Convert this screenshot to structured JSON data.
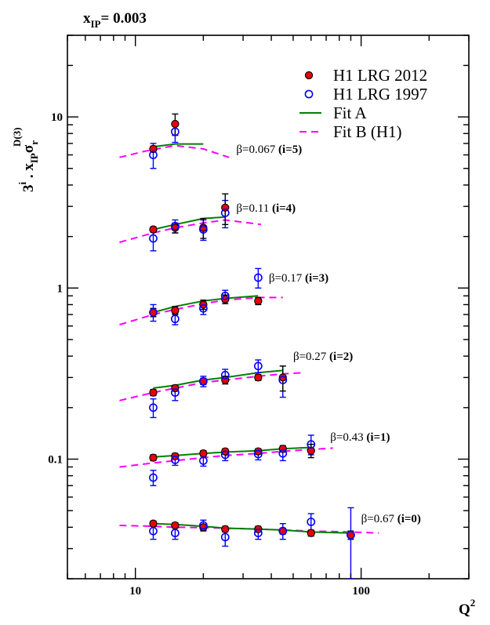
{
  "chart_data": {
    "type": "scatter",
    "title": "x",
    "title_sub": "IP",
    "title_suffix": "= 0.003",
    "xlabel": "Q",
    "xlabel_sup": "2",
    "ylabel": {
      "prefix": "3",
      "prefix_sup": "i",
      "mid": " . x",
      "mid_sub": "IP",
      "sigma": "σ",
      "sigma_sub": "r",
      "sigma_sup": "D(3)"
    },
    "x_scale": "log",
    "y_scale": "log",
    "xlim": [
      5,
      300
    ],
    "ylim": [
      0.02,
      30
    ],
    "x_ticks": [
      {
        "v": 10,
        "label": "10"
      },
      {
        "v": 100,
        "label": "100"
      }
    ],
    "y_ticks": [
      {
        "v": 0.1,
        "label": "0.1"
      },
      {
        "v": 1,
        "label": "1"
      },
      {
        "v": 10,
        "label": "10"
      }
    ],
    "grid": false,
    "legend_position": "top-right",
    "legend": [
      {
        "label": "H1 LRG 2012",
        "kind": "filled-circle"
      },
      {
        "label": "H1 LRG 1997",
        "kind": "open-circle"
      },
      {
        "label": "Fit A",
        "kind": "solid-line"
      },
      {
        "label": "Fit B (H1)",
        "kind": "dashed-line"
      }
    ],
    "colors": {
      "h1_2012_fill": "#e8000b",
      "h1_1997": "#0000ff",
      "fit_a": "#008000",
      "fit_b": "#ff00ff",
      "axis": "#000000"
    },
    "bins": [
      {
        "beta": "β=0.067",
        "idx": "(i=5)",
        "label_x": 28,
        "label_y": 6.5,
        "lrg2012": [
          [
            12,
            6.5,
            0.25
          ],
          [
            15,
            9.1,
            1.3
          ]
        ],
        "lrg1997": [
          [
            12,
            6.0,
            1.0
          ],
          [
            15,
            8.2,
            1.1
          ]
        ],
        "fitA": [
          [
            12,
            6.7
          ],
          [
            15,
            6.95
          ],
          [
            20,
            6.95
          ]
        ],
        "fitB": [
          [
            8.5,
            5.8
          ],
          [
            11,
            6.3
          ],
          [
            15,
            6.8
          ],
          [
            20,
            6.5
          ],
          [
            26,
            5.8
          ]
        ]
      },
      {
        "beta": "β=0.11",
        "idx": "(i=4)",
        "label_x": 28,
        "label_y": 2.95,
        "lrg2012": [
          [
            12,
            2.2,
            0.08
          ],
          [
            15,
            2.25,
            0.15
          ],
          [
            20,
            2.25,
            0.3
          ],
          [
            25,
            2.95,
            0.6
          ]
        ],
        "lrg1997": [
          [
            12,
            1.95,
            0.3
          ],
          [
            15,
            2.3,
            0.2
          ],
          [
            20,
            2.2,
            0.3
          ],
          [
            25,
            2.75,
            0.5
          ]
        ],
        "fitA": [
          [
            12,
            2.2
          ],
          [
            15,
            2.35
          ],
          [
            20,
            2.55
          ],
          [
            25,
            2.6
          ]
        ],
        "fitB": [
          [
            8.5,
            1.85
          ],
          [
            12,
            2.1
          ],
          [
            15,
            2.25
          ],
          [
            20,
            2.4
          ],
          [
            25,
            2.5
          ],
          [
            36,
            2.35
          ]
        ]
      },
      {
        "beta": "β=0.17",
        "idx": "(i=3)",
        "label_x": 39,
        "label_y": 1.15,
        "lrg2012": [
          [
            12,
            0.72,
            0.04
          ],
          [
            15,
            0.74,
            0.04
          ],
          [
            20,
            0.8,
            0.05
          ],
          [
            25,
            0.86,
            0.05
          ],
          [
            35,
            0.84,
            0.04
          ]
        ],
        "lrg1997": [
          [
            12,
            0.72,
            0.08
          ],
          [
            15,
            0.66,
            0.05
          ],
          [
            20,
            0.76,
            0.06
          ],
          [
            25,
            0.9,
            0.07
          ],
          [
            35,
            1.15,
            0.15
          ]
        ],
        "fitA": [
          [
            12,
            0.72
          ],
          [
            15,
            0.78
          ],
          [
            20,
            0.84
          ],
          [
            25,
            0.87
          ],
          [
            35,
            0.9
          ]
        ],
        "fitB": [
          [
            8.5,
            0.61
          ],
          [
            12,
            0.7
          ],
          [
            15,
            0.75
          ],
          [
            20,
            0.81
          ],
          [
            25,
            0.85
          ],
          [
            35,
            0.88
          ],
          [
            45,
            0.88
          ]
        ]
      },
      {
        "beta": "β=0.27",
        "idx": "(i=2)",
        "label_x": 50,
        "label_y": 0.4,
        "lrg2012": [
          [
            12,
            0.245,
            0.01
          ],
          [
            15,
            0.26,
            0.01
          ],
          [
            20,
            0.285,
            0.012
          ],
          [
            25,
            0.29,
            0.015
          ],
          [
            35,
            0.3,
            0.012
          ],
          [
            45,
            0.3,
            0.05
          ]
        ],
        "lrg1997": [
          [
            12,
            0.2,
            0.025
          ],
          [
            15,
            0.245,
            0.025
          ],
          [
            20,
            0.285,
            0.02
          ],
          [
            25,
            0.31,
            0.025
          ],
          [
            35,
            0.35,
            0.03
          ],
          [
            45,
            0.29,
            0.06
          ]
        ],
        "fitA": [
          [
            12,
            0.26
          ],
          [
            15,
            0.27
          ],
          [
            20,
            0.29
          ],
          [
            25,
            0.3
          ],
          [
            35,
            0.32
          ],
          [
            45,
            0.33
          ]
        ],
        "fitB": [
          [
            8.5,
            0.22
          ],
          [
            12,
            0.245
          ],
          [
            15,
            0.26
          ],
          [
            20,
            0.28
          ],
          [
            25,
            0.29
          ],
          [
            35,
            0.305
          ],
          [
            45,
            0.315
          ],
          [
            55,
            0.32
          ]
        ]
      },
      {
        "beta": "β=0.43",
        "idx": "(i=1)",
        "label_x": 73,
        "label_y": 0.135,
        "lrg2012": [
          [
            12,
            0.102,
            0.004
          ],
          [
            15,
            0.104,
            0.004
          ],
          [
            20,
            0.108,
            0.004
          ],
          [
            25,
            0.111,
            0.004
          ],
          [
            35,
            0.111,
            0.004
          ],
          [
            45,
            0.115,
            0.005
          ],
          [
            60,
            0.112,
            0.01
          ]
        ],
        "lrg1997": [
          [
            12,
            0.078,
            0.008
          ],
          [
            15,
            0.099,
            0.007
          ],
          [
            20,
            0.098,
            0.007
          ],
          [
            25,
            0.106,
            0.008
          ],
          [
            35,
            0.107,
            0.008
          ],
          [
            45,
            0.108,
            0.01
          ],
          [
            60,
            0.122,
            0.016
          ]
        ],
        "fitA": [
          [
            12,
            0.103
          ],
          [
            15,
            0.105
          ],
          [
            20,
            0.108
          ],
          [
            25,
            0.11
          ],
          [
            35,
            0.112
          ],
          [
            45,
            0.115
          ],
          [
            60,
            0.117
          ]
        ],
        "fitB": [
          [
            8.5,
            0.09
          ],
          [
            12,
            0.095
          ],
          [
            15,
            0.098
          ],
          [
            20,
            0.102
          ],
          [
            25,
            0.105
          ],
          [
            35,
            0.108
          ],
          [
            45,
            0.111
          ],
          [
            60,
            0.114
          ],
          [
            75,
            0.116
          ]
        ]
      },
      {
        "beta": "β=0.67",
        "idx": "(i=0)",
        "label_x": 100,
        "label_y": 0.045,
        "lrg2012": [
          [
            12,
            0.042,
            0.0015
          ],
          [
            15,
            0.041,
            0.0015
          ],
          [
            20,
            0.04,
            0.0015
          ],
          [
            25,
            0.039,
            0.0015
          ],
          [
            35,
            0.039,
            0.0015
          ],
          [
            45,
            0.038,
            0.0015
          ],
          [
            60,
            0.037,
            0.0015
          ],
          [
            90,
            0.036,
            0.002
          ]
        ],
        "lrg1997": [
          [
            12,
            0.038,
            0.004
          ],
          [
            15,
            0.037,
            0.003
          ],
          [
            20,
            0.041,
            0.003
          ],
          [
            25,
            0.035,
            0.004
          ],
          [
            35,
            0.037,
            0.003
          ],
          [
            45,
            0.038,
            0.004
          ],
          [
            60,
            0.043,
            0.005
          ],
          [
            90,
            0.036,
            0.016
          ]
        ],
        "fitA": [
          [
            12,
            0.042
          ],
          [
            15,
            0.0415
          ],
          [
            20,
            0.0405
          ],
          [
            25,
            0.0395
          ],
          [
            35,
            0.039
          ],
          [
            45,
            0.0385
          ],
          [
            60,
            0.0375
          ],
          [
            90,
            0.037
          ]
        ],
        "fitB": [
          [
            8.5,
            0.041
          ],
          [
            12,
            0.0405
          ],
          [
            15,
            0.04
          ],
          [
            20,
            0.0398
          ],
          [
            25,
            0.0395
          ],
          [
            35,
            0.039
          ],
          [
            45,
            0.0385
          ],
          [
            60,
            0.038
          ],
          [
            90,
            0.0375
          ],
          [
            120,
            0.037
          ]
        ]
      }
    ]
  }
}
